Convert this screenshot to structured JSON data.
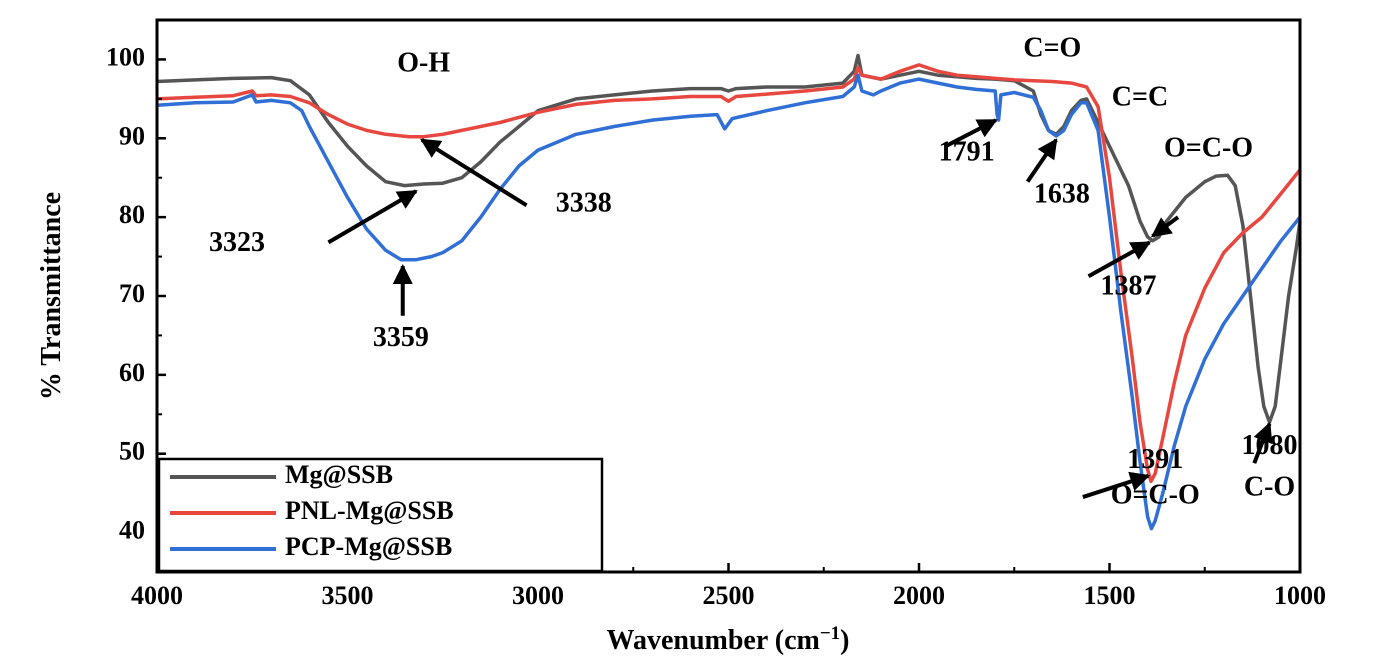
{
  "chart_data": {
    "type": "line",
    "xlabel": "Wavenumber (cm",
    "xlabel_sup": "−1",
    "xlabel_end": ")",
    "ylabel": "% Transmittance",
    "xlim": [
      4000,
      1000
    ],
    "ylim": [
      35,
      105
    ],
    "x_reversed": true,
    "x_ticks": [
      4000,
      3500,
      3000,
      2500,
      2000,
      1500,
      1000
    ],
    "y_ticks": [
      40,
      50,
      60,
      70,
      80,
      90,
      100
    ],
    "grid": false,
    "legend_position": "bottom-left",
    "series": [
      {
        "name": "Mg@SSB",
        "color": "#555555",
        "points": [
          [
            4000,
            97.2
          ],
          [
            3900,
            97.4
          ],
          [
            3800,
            97.6
          ],
          [
            3700,
            97.7
          ],
          [
            3650,
            97.3
          ],
          [
            3600,
            95.5
          ],
          [
            3550,
            92.0
          ],
          [
            3500,
            89.0
          ],
          [
            3450,
            86.5
          ],
          [
            3400,
            84.5
          ],
          [
            3350,
            84.0
          ],
          [
            3300,
            84.2
          ],
          [
            3250,
            84.3
          ],
          [
            3200,
            85.0
          ],
          [
            3150,
            87.0
          ],
          [
            3100,
            89.5
          ],
          [
            3050,
            91.5
          ],
          [
            3000,
            93.5
          ],
          [
            2900,
            95.0
          ],
          [
            2800,
            95.5
          ],
          [
            2700,
            96.0
          ],
          [
            2600,
            96.3
          ],
          [
            2520,
            96.3
          ],
          [
            2500,
            96.0
          ],
          [
            2480,
            96.3
          ],
          [
            2400,
            96.5
          ],
          [
            2300,
            96.5
          ],
          [
            2200,
            97.0
          ],
          [
            2170,
            98.5
          ],
          [
            2160,
            100.5
          ],
          [
            2150,
            98.0
          ],
          [
            2100,
            97.5
          ],
          [
            2050,
            98.0
          ],
          [
            2000,
            98.5
          ],
          [
            1950,
            98.0
          ],
          [
            1900,
            97.8
          ],
          [
            1850,
            97.6
          ],
          [
            1800,
            97.5
          ],
          [
            1750,
            97.3
          ],
          [
            1700,
            96.0
          ],
          [
            1680,
            93.0
          ],
          [
            1660,
            91.0
          ],
          [
            1640,
            90.5
          ],
          [
            1620,
            91.5
          ],
          [
            1600,
            93.5
          ],
          [
            1575,
            94.8
          ],
          [
            1560,
            95.0
          ],
          [
            1540,
            93.0
          ],
          [
            1500,
            89.0
          ],
          [
            1450,
            84.0
          ],
          [
            1420,
            79.5
          ],
          [
            1400,
            77.5
          ],
          [
            1387,
            77.0
          ],
          [
            1370,
            77.5
          ],
          [
            1350,
            79.5
          ],
          [
            1300,
            82.5
          ],
          [
            1250,
            84.5
          ],
          [
            1220,
            85.2
          ],
          [
            1190,
            85.3
          ],
          [
            1170,
            84.0
          ],
          [
            1150,
            79.0
          ],
          [
            1130,
            70.0
          ],
          [
            1110,
            61.0
          ],
          [
            1095,
            56.0
          ],
          [
            1080,
            54.0
          ],
          [
            1065,
            56.0
          ],
          [
            1050,
            62.0
          ],
          [
            1030,
            70.0
          ],
          [
            1010,
            76.0
          ],
          [
            1000,
            79.5
          ]
        ]
      },
      {
        "name": "PNL-Mg@SSB",
        "color": "#e8473f",
        "points": [
          [
            4000,
            95.0
          ],
          [
            3900,
            95.2
          ],
          [
            3800,
            95.4
          ],
          [
            3750,
            96.0
          ],
          [
            3740,
            95.4
          ],
          [
            3700,
            95.5
          ],
          [
            3650,
            95.3
          ],
          [
            3600,
            94.5
          ],
          [
            3550,
            93.0
          ],
          [
            3500,
            91.8
          ],
          [
            3450,
            91.0
          ],
          [
            3400,
            90.5
          ],
          [
            3338,
            90.2
          ],
          [
            3300,
            90.2
          ],
          [
            3250,
            90.5
          ],
          [
            3200,
            91.0
          ],
          [
            3100,
            92.0
          ],
          [
            3000,
            93.3
          ],
          [
            2900,
            94.3
          ],
          [
            2800,
            94.8
          ],
          [
            2700,
            95.0
          ],
          [
            2600,
            95.3
          ],
          [
            2520,
            95.3
          ],
          [
            2500,
            94.7
          ],
          [
            2480,
            95.3
          ],
          [
            2400,
            95.6
          ],
          [
            2300,
            96.0
          ],
          [
            2200,
            96.5
          ],
          [
            2170,
            97.5
          ],
          [
            2160,
            99.0
          ],
          [
            2150,
            98.0
          ],
          [
            2100,
            97.5
          ],
          [
            2050,
            98.5
          ],
          [
            2000,
            99.3
          ],
          [
            1950,
            98.5
          ],
          [
            1900,
            98.0
          ],
          [
            1850,
            97.8
          ],
          [
            1800,
            97.6
          ],
          [
            1750,
            97.4
          ],
          [
            1700,
            97.3
          ],
          [
            1650,
            97.2
          ],
          [
            1600,
            97.0
          ],
          [
            1560,
            96.5
          ],
          [
            1530,
            94.0
          ],
          [
            1500,
            85.0
          ],
          [
            1470,
            73.0
          ],
          [
            1440,
            62.0
          ],
          [
            1420,
            54.0
          ],
          [
            1400,
            48.0
          ],
          [
            1391,
            46.5
          ],
          [
            1380,
            47.5
          ],
          [
            1360,
            52.0
          ],
          [
            1330,
            59.0
          ],
          [
            1300,
            65.0
          ],
          [
            1250,
            71.0
          ],
          [
            1200,
            75.5
          ],
          [
            1150,
            78.0
          ],
          [
            1100,
            80.0
          ],
          [
            1050,
            83.0
          ],
          [
            1000,
            86.0
          ]
        ]
      },
      {
        "name": "PCP-Mg@SSB",
        "color": "#2f6fd6",
        "points": [
          [
            4000,
            94.2
          ],
          [
            3900,
            94.5
          ],
          [
            3800,
            94.6
          ],
          [
            3750,
            95.5
          ],
          [
            3740,
            94.6
          ],
          [
            3700,
            94.8
          ],
          [
            3650,
            94.5
          ],
          [
            3620,
            93.5
          ],
          [
            3600,
            91.5
          ],
          [
            3550,
            87.0
          ],
          [
            3500,
            82.5
          ],
          [
            3450,
            78.5
          ],
          [
            3400,
            75.8
          ],
          [
            3359,
            74.6
          ],
          [
            3320,
            74.6
          ],
          [
            3280,
            75.0
          ],
          [
            3250,
            75.5
          ],
          [
            3200,
            77.0
          ],
          [
            3150,
            80.0
          ],
          [
            3100,
            83.5
          ],
          [
            3050,
            86.5
          ],
          [
            3000,
            88.5
          ],
          [
            2950,
            89.5
          ],
          [
            2900,
            90.5
          ],
          [
            2800,
            91.5
          ],
          [
            2700,
            92.3
          ],
          [
            2600,
            92.8
          ],
          [
            2530,
            93.0
          ],
          [
            2510,
            91.2
          ],
          [
            2490,
            92.5
          ],
          [
            2400,
            93.5
          ],
          [
            2300,
            94.5
          ],
          [
            2200,
            95.3
          ],
          [
            2170,
            96.5
          ],
          [
            2160,
            98.0
          ],
          [
            2150,
            96.0
          ],
          [
            2120,
            95.5
          ],
          [
            2100,
            96.0
          ],
          [
            2050,
            97.0
          ],
          [
            2000,
            97.5
          ],
          [
            1950,
            97.0
          ],
          [
            1900,
            96.5
          ],
          [
            1850,
            96.2
          ],
          [
            1800,
            96.0
          ],
          [
            1795,
            93.0
          ],
          [
            1791,
            92.3
          ],
          [
            1785,
            95.5
          ],
          [
            1750,
            95.8
          ],
          [
            1700,
            95.2
          ],
          [
            1680,
            93.5
          ],
          [
            1660,
            91.0
          ],
          [
            1640,
            90.3
          ],
          [
            1620,
            91.0
          ],
          [
            1600,
            93.0
          ],
          [
            1575,
            94.5
          ],
          [
            1560,
            94.5
          ],
          [
            1530,
            91.0
          ],
          [
            1500,
            80.0
          ],
          [
            1470,
            68.0
          ],
          [
            1440,
            57.0
          ],
          [
            1420,
            49.0
          ],
          [
            1400,
            42.0
          ],
          [
            1390,
            40.5
          ],
          [
            1380,
            41.5
          ],
          [
            1360,
            45.0
          ],
          [
            1330,
            51.0
          ],
          [
            1300,
            56.0
          ],
          [
            1250,
            62.0
          ],
          [
            1200,
            66.5
          ],
          [
            1150,
            70.0
          ],
          [
            1100,
            73.5
          ],
          [
            1050,
            77.0
          ],
          [
            1000,
            80.0
          ]
        ]
      }
    ],
    "annotations": [
      {
        "text": "O-H",
        "x": 3300,
        "y": 99.3
      },
      {
        "text": "C=O",
        "x": 1650,
        "y": 101.2
      },
      {
        "text": "C=C",
        "x": 1420,
        "y": 95.0
      },
      {
        "text": "O=C-O",
        "x": 1240,
        "y": 88.5
      },
      {
        "text": "3323",
        "x": 3790,
        "y": 76.5
      },
      {
        "text": "3338",
        "x": 2880,
        "y": 81.5
      },
      {
        "text": "3359",
        "x": 3360,
        "y": 64.5
      },
      {
        "text": "1791",
        "x": 1875,
        "y": 88.0
      },
      {
        "text": "1638",
        "x": 1625,
        "y": 82.7
      },
      {
        "text": "1387",
        "x": 1450,
        "y": 71.0
      },
      {
        "text": "1391",
        "x": 1380,
        "y": 49.0
      },
      {
        "text": "O=C-O",
        "x": 1380,
        "y": 44.5
      },
      {
        "text": "1080",
        "x": 1080,
        "y": 50.8
      },
      {
        "text": "C-O",
        "x": 1080,
        "y": 45.5
      }
    ],
    "arrows": [
      {
        "from": [
          3550,
          76.8
        ],
        "to": [
          3320,
          83.3
        ]
      },
      {
        "from": [
          3030,
          81.5
        ],
        "to": [
          3305,
          89.8
        ]
      },
      {
        "from": [
          3355,
          67.5
        ],
        "to": [
          3355,
          73.8
        ]
      },
      {
        "from": [
          1930,
          89.0
        ],
        "to": [
          1798,
          92.3
        ]
      },
      {
        "from": [
          1715,
          84.5
        ],
        "to": [
          1640,
          89.8
        ]
      },
      {
        "from": [
          1555,
          72.5
        ],
        "to": [
          1395,
          76.8
        ]
      },
      {
        "from": [
          1320,
          80.0
        ],
        "to": [
          1387,
          77.6
        ]
      },
      {
        "from": [
          1570,
          44.5
        ],
        "to": [
          1398,
          47.2
        ]
      },
      {
        "from": [
          1120,
          48.8
        ],
        "to": [
          1080,
          53.8
        ]
      }
    ]
  }
}
